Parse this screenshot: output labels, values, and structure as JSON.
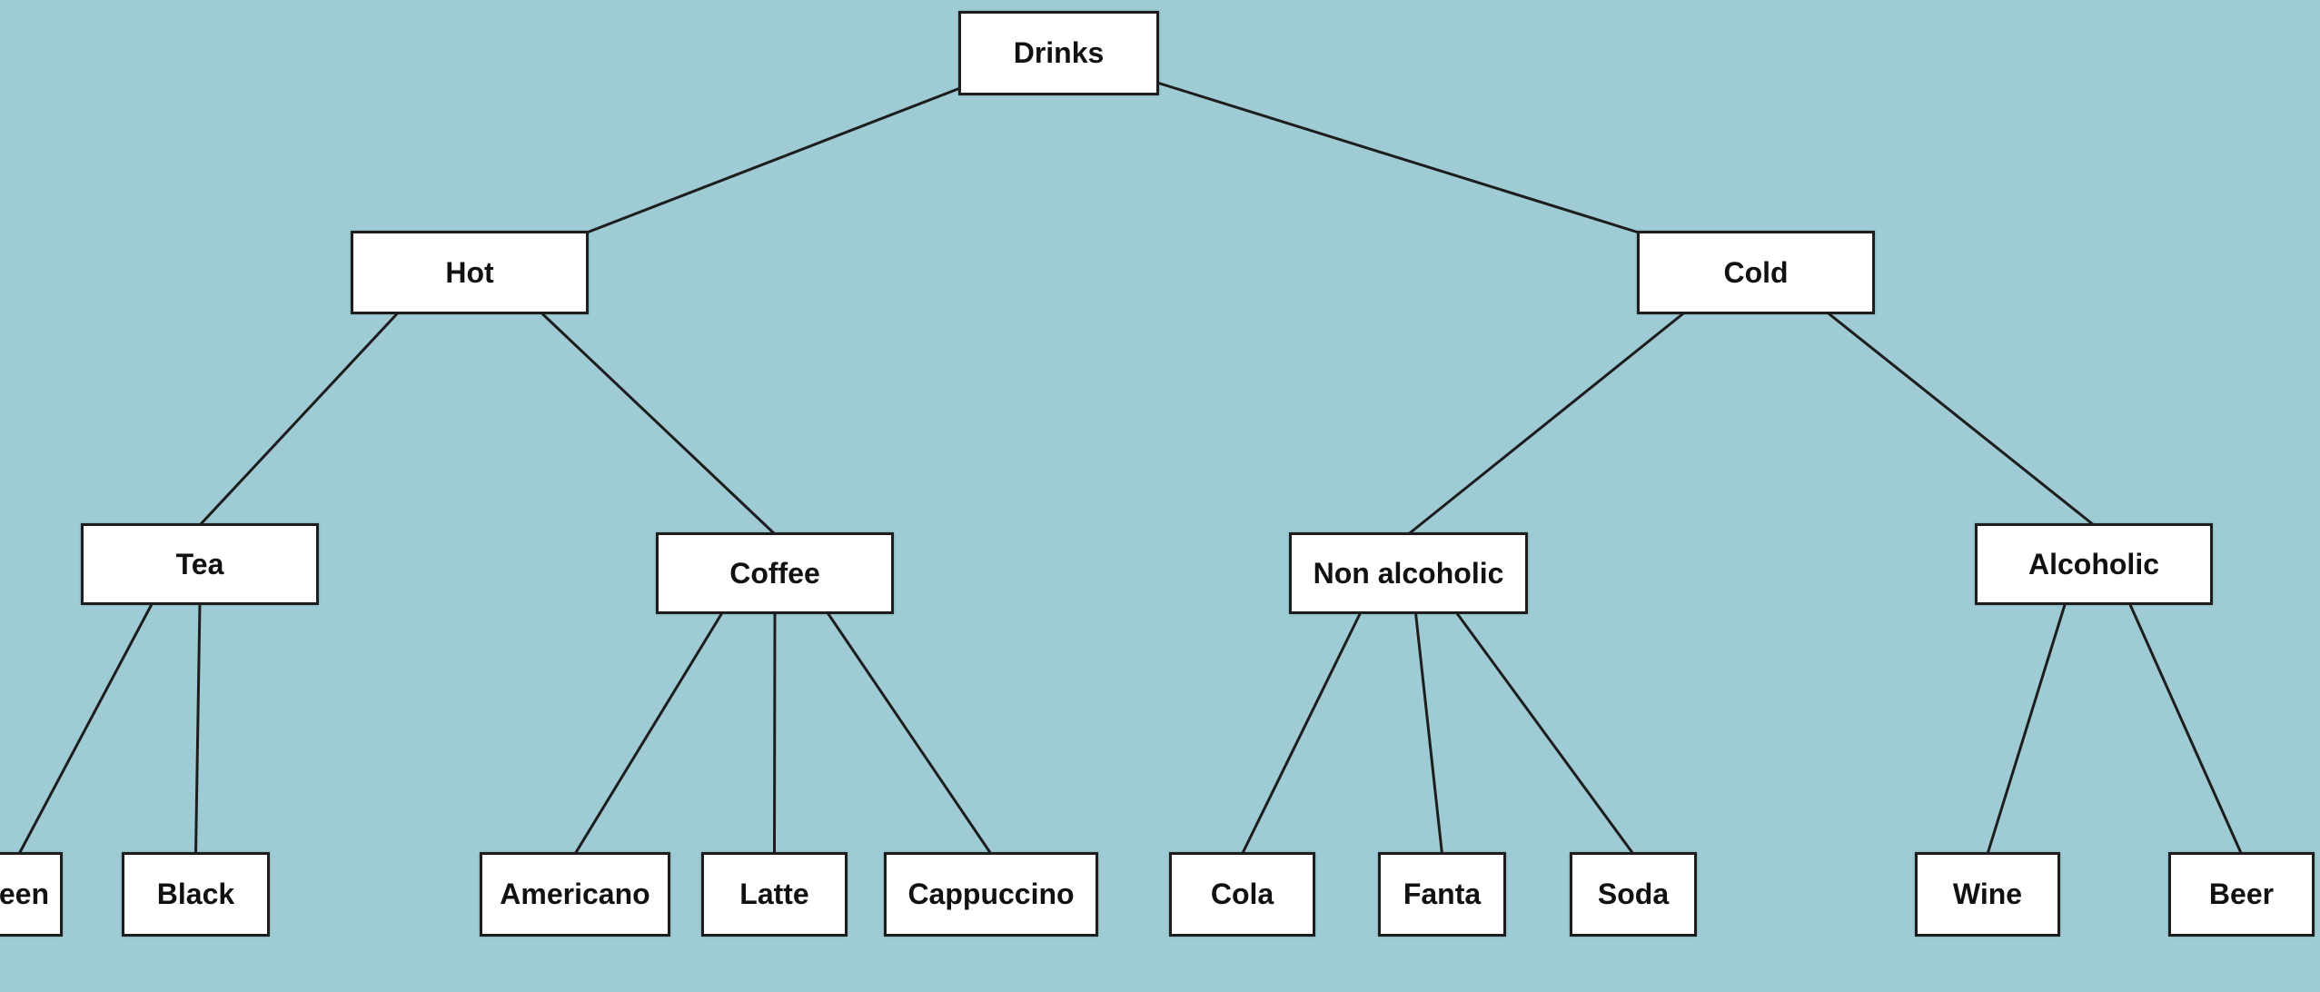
{
  "colors": {
    "background": "#9ecbd4",
    "node_fill": "#ffffff",
    "node_border": "#1d1d1d",
    "edge": "#1d1d1d",
    "text": "#111111"
  },
  "tree": {
    "root": "Drinks",
    "nodes": {
      "drinks": {
        "label": "Drinks"
      },
      "hot": {
        "label": "Hot"
      },
      "cold": {
        "label": "Cold"
      },
      "tea": {
        "label": "Tea"
      },
      "coffee": {
        "label": "Coffee"
      },
      "non_alcoholic": {
        "label": "Non alcoholic"
      },
      "alcoholic": {
        "label": "Alcoholic"
      },
      "green": {
        "label": "Green"
      },
      "black": {
        "label": "Black"
      },
      "americano": {
        "label": "Americano"
      },
      "latte": {
        "label": "Latte"
      },
      "cappuccino": {
        "label": "Cappuccino"
      },
      "cola": {
        "label": "Cola"
      },
      "fanta": {
        "label": "Fanta"
      },
      "soda": {
        "label": "Soda"
      },
      "wine": {
        "label": "Wine"
      },
      "beer": {
        "label": "Beer"
      }
    },
    "edges": [
      [
        "drinks",
        "hot"
      ],
      [
        "drinks",
        "cold"
      ],
      [
        "hot",
        "tea"
      ],
      [
        "hot",
        "coffee"
      ],
      [
        "cold",
        "non_alcoholic"
      ],
      [
        "cold",
        "alcoholic"
      ],
      [
        "tea",
        "green"
      ],
      [
        "tea",
        "black"
      ],
      [
        "coffee",
        "americano"
      ],
      [
        "coffee",
        "latte"
      ],
      [
        "coffee",
        "cappuccino"
      ],
      [
        "non_alcoholic",
        "cola"
      ],
      [
        "non_alcoholic",
        "fanta"
      ],
      [
        "non_alcoholic",
        "soda"
      ],
      [
        "alcoholic",
        "wine"
      ],
      [
        "alcoholic",
        "beer"
      ]
    ]
  }
}
